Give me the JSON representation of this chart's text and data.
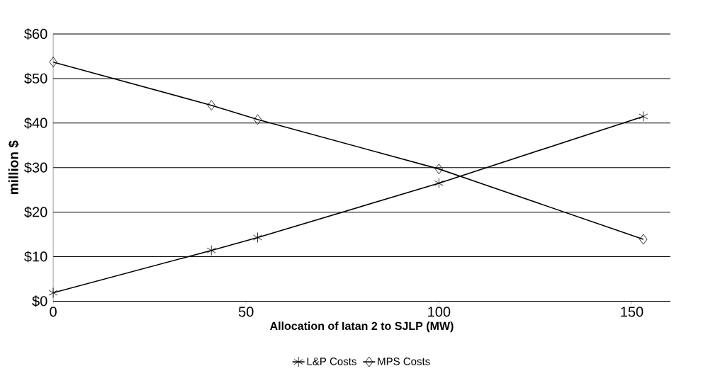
{
  "chart_data": {
    "type": "line",
    "xlabel": "Allocation of Iatan 2 to SJLP (MW)",
    "ylabel": "million $",
    "xlim": [
      0,
      160
    ],
    "xticks": [
      0,
      50,
      100,
      150
    ],
    "ylim": [
      0,
      60
    ],
    "yticks": [
      {
        "value": 0,
        "label": "$0"
      },
      {
        "value": 10,
        "label": "$10"
      },
      {
        "value": 20,
        "label": "$20"
      },
      {
        "value": 30,
        "label": "$30"
      },
      {
        "value": 40,
        "label": "$40"
      },
      {
        "value": 50,
        "label": "$50"
      },
      {
        "value": 60,
        "label": "$60"
      }
    ],
    "grid": "y",
    "legend": "bottom",
    "line_style": "solid",
    "series": [
      {
        "name": "L&P Costs",
        "color": "#000000",
        "marker": "cross",
        "x": [
          0,
          41,
          53,
          100,
          153
        ],
        "values": [
          1.9,
          11.4,
          14.3,
          26.5,
          41.5
        ]
      },
      {
        "name": "MPS Costs",
        "color": "#000000",
        "marker": "diamond",
        "x": [
          0,
          41,
          53,
          100,
          153
        ],
        "values": [
          53.7,
          44.0,
          40.8,
          29.7,
          13.9
        ]
      }
    ]
  }
}
